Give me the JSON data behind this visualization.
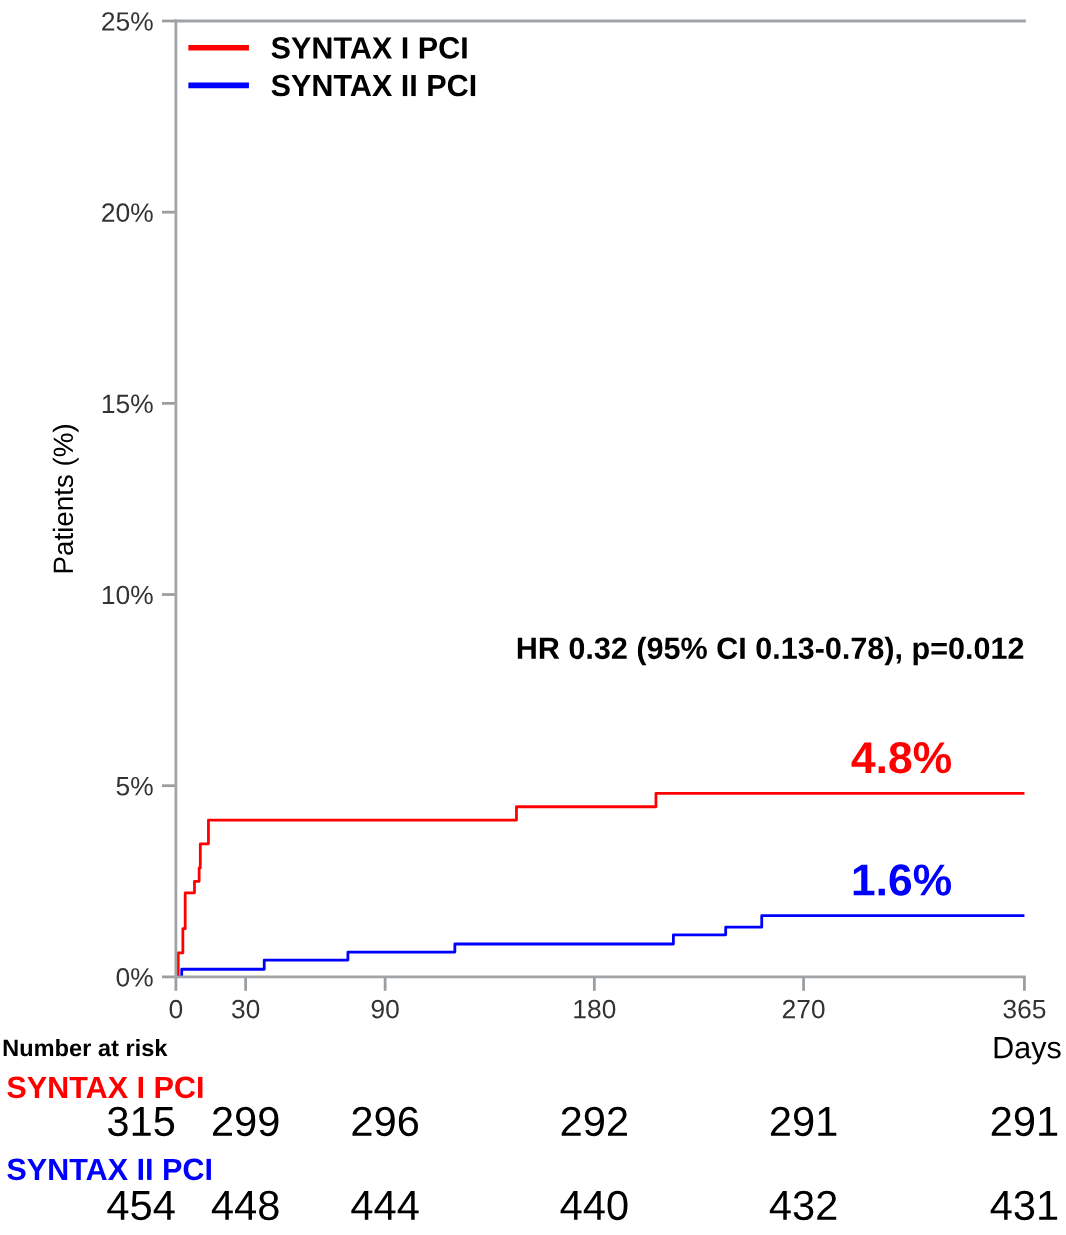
{
  "chart_data": {
    "type": "step",
    "ylabel": "Patients (%)",
    "xlabel": "Days",
    "xlim": [
      0,
      365
    ],
    "xticks": [
      0,
      30,
      90,
      180,
      270,
      365
    ],
    "ylim": [
      0,
      25
    ],
    "yticks": [
      {
        "value": 0,
        "label": "0%"
      },
      {
        "value": 5,
        "label": "5%"
      },
      {
        "value": 10,
        "label": "10%"
      },
      {
        "value": 15,
        "label": "15%"
      },
      {
        "value": 20,
        "label": "20%"
      },
      {
        "value": 25,
        "label": "25%"
      }
    ],
    "series": [
      {
        "name": "SYNTAX I PCI",
        "color": "#ff0000",
        "x": [
          0,
          1,
          3,
          4,
          8,
          10,
          10.5,
          14,
          146.5,
          206.5,
          365
        ],
        "values": [
          0,
          0.63,
          1.26,
          2.2,
          2.5,
          2.85,
          3.48,
          4.1,
          4.45,
          4.8,
          4.8
        ]
      },
      {
        "name": "SYNTAX II PCI",
        "color": "#0000ff",
        "x": [
          0,
          2.5,
          38,
          74,
          120,
          214,
          236.5,
          252,
          365
        ],
        "values": [
          0,
          0.2,
          0.44,
          0.65,
          0.86,
          1.1,
          1.3,
          1.6,
          1.6
        ]
      }
    ],
    "annotations": [
      "HR 0.32 (95% CI 0.13-0.78), p=0.012",
      {
        "text": "4.8%",
        "x": 365,
        "y": 4.8
      },
      {
        "text": "1.6%",
        "x": 365,
        "y": 1.6
      },
      "Number at risk",
      "SYNTAX I PCI",
      "315",
      "299",
      "296",
      "292",
      "291",
      "291",
      "SYNTAX II PCI",
      "454",
      "448",
      "444",
      "440",
      "432",
      "431"
    ],
    "legend": "top left",
    "grid": false,
    "line_style": "solid",
    "marker": "none"
  }
}
